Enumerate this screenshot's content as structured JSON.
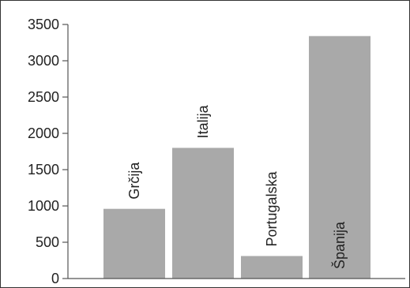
{
  "chart_data": {
    "type": "bar",
    "categories": [
      "Grčija",
      "Italija",
      "Portugalska",
      "Španija"
    ],
    "values": [
      960,
      1800,
      310,
      3340
    ],
    "title": "",
    "xlabel": "",
    "ylabel": "",
    "ylim": [
      0,
      3500
    ],
    "yticks": [
      0,
      500,
      1000,
      1500,
      2000,
      2500,
      3000,
      3500
    ],
    "ytick_labels": [
      "0",
      "500",
      "1000",
      "1500",
      "2000",
      "2500",
      "3000",
      "3500"
    ],
    "grid": false,
    "legend": "none",
    "bar_color": "#a9a9a9",
    "axis_color": "#555555"
  }
}
